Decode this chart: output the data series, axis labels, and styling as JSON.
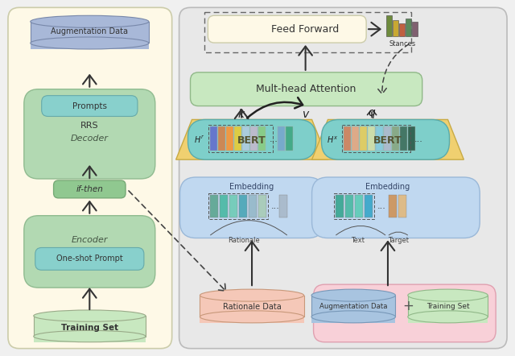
{
  "fig_width": 6.4,
  "fig_height": 4.42,
  "dpi": 100,
  "bg_outer": "#f0f0f0",
  "left_panel_bg": "#fef9e7",
  "right_panel_bg": "#e8e8e8",
  "teal_blob": "#7ecfca",
  "teal_blob_edge": "#5aabab",
  "green_panel": "#b2d9b2",
  "green_panel_edge": "#90bb90",
  "green_box": "#a0cfa0",
  "teal_inner": "#88d0cc",
  "teal_inner_edge": "#66aaaa",
  "ifthen_green": "#90c890",
  "bert_yellow": "#f0d070",
  "bert_yellow_edge": "#c8aa44",
  "embed_blue": "#c0d8f0",
  "embed_blue_edge": "#9ab8d8",
  "rationale_pink": "#f5c8b8",
  "rationale_pink_edge": "#c8987a",
  "aug_pink_bg": "#f8d0d8",
  "aug_pink_bg_edge": "#e0a0b0",
  "aug_cyl_blue": "#a8c4e0",
  "aug_cyl_edge": "#7898b8",
  "train_cyl_green": "#c8e8c0",
  "train_cyl_edge": "#90b888",
  "aug_top_cyl": "#a8b8d8",
  "aug_top_edge": "#7888aa",
  "ff_box": "#fef9e7",
  "ff_edge": "#ccccaa",
  "mha_box": "#c8e8c0",
  "mha_edge": "#90b888",
  "bar_colors_stances": [
    "#6e8b3d",
    "#c8a832",
    "#c06040",
    "#5a8a5a",
    "#806070"
  ],
  "bar_heights_stances": [
    26,
    20,
    16,
    22,
    18
  ],
  "emb_bars_left": [
    "#66aa99",
    "#55bbaa",
    "#77ccbb",
    "#55aabb",
    "#99bbcc",
    "#aaccbb"
  ],
  "emb_bars_right_text": [
    "#44aa99",
    "#55bbaa",
    "#66ccbb",
    "#44aacc"
  ],
  "emb_bars_right_target": [
    "#cc9966",
    "#ddbb88"
  ],
  "h_bars_left": [
    "#6677cc",
    "#cc8855",
    "#ee9944",
    "#ddcc44",
    "#aaccdd",
    "#bbbbcc",
    "#88cc88"
  ],
  "h_bars_right": [
    "#cc8866",
    "#ddaa88",
    "#ddcc66",
    "#ccddaa",
    "#88ccdd",
    "#aabbcc",
    "#88aa88",
    "#447766",
    "#336655"
  ]
}
